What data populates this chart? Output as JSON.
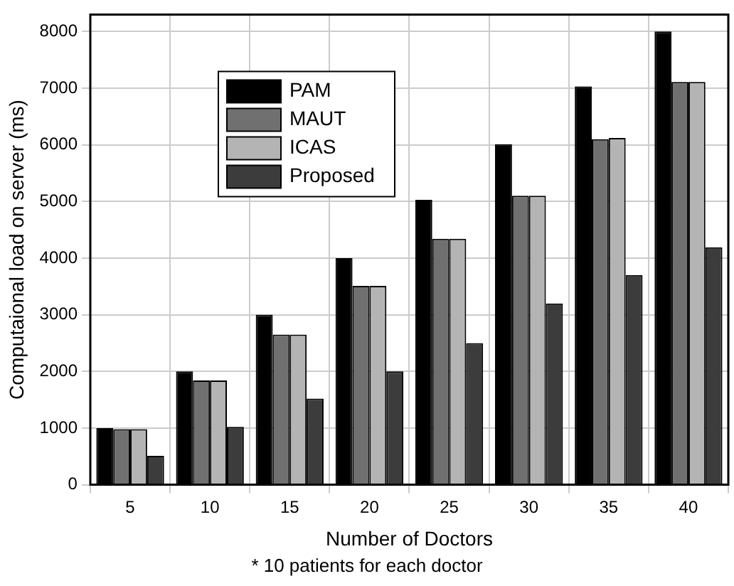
{
  "chart_data": {
    "type": "bar",
    "xlabel": "Number of Doctors",
    "ylabel": "Computaional load on server (ms)",
    "annotations": [
      "* 10 patients for each doctor"
    ],
    "categories": [
      "5",
      "10",
      "15",
      "20",
      "25",
      "30",
      "35",
      "40"
    ],
    "series": [
      {
        "name": "PAM",
        "color": "#000000",
        "values": [
          1000,
          2000,
          3000,
          4000,
          5030,
          6010,
          7030,
          8000
        ]
      },
      {
        "name": "MAUT",
        "color": "#707070",
        "values": [
          980,
          1840,
          2650,
          3510,
          4340,
          5100,
          6100,
          7110
        ]
      },
      {
        "name": "ICAS",
        "color": "#b4b4b4",
        "values": [
          980,
          1840,
          2650,
          3510,
          4340,
          5100,
          6120,
          7110
        ]
      },
      {
        "name": "Proposed",
        "color": "#3c3c3c",
        "values": [
          510,
          1020,
          1520,
          2000,
          2500,
          3200,
          3700,
          4190
        ]
      }
    ],
    "ylim": [
      0,
      8300
    ],
    "yticks": [
      0,
      1000,
      2000,
      3000,
      4000,
      5000,
      6000,
      7000,
      8000
    ],
    "grid": true,
    "legend": "top left"
  }
}
